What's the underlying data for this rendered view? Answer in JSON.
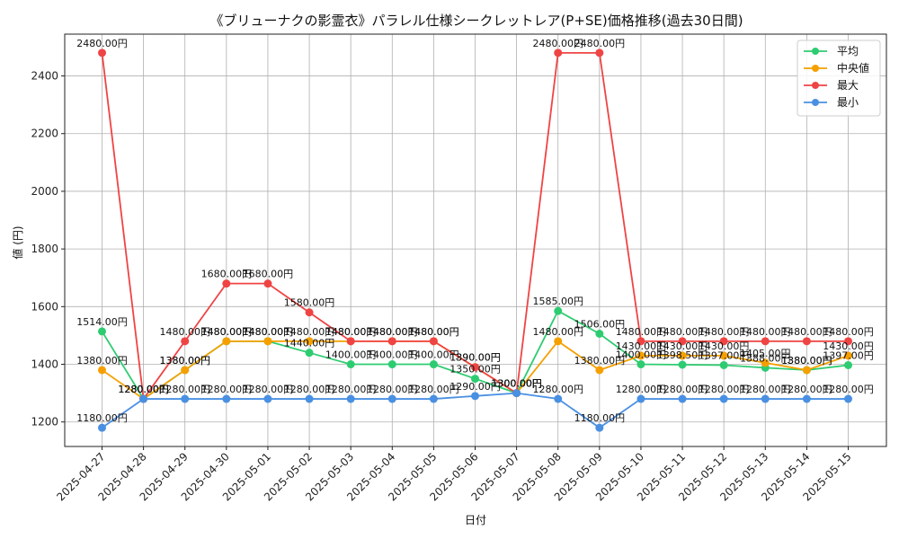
{
  "chart_data": {
    "type": "line",
    "title": "《ブリューナクの影霊衣》パラレル仕様シークレットレア(P+SE)価格推移(過去30日間)",
    "xlabel": "日付",
    "ylabel": "値 (円)",
    "ylim": [
      1115,
      2545
    ],
    "yticks": [
      1200,
      1400,
      1600,
      1800,
      2000,
      2200,
      2400
    ],
    "grid": true,
    "legend_position": "top-right",
    "categories": [
      "2025-04-27",
      "2025-04-28",
      "2025-04-29",
      "2025-04-30",
      "2025-05-01",
      "2025-05-02",
      "2025-05-03",
      "2025-05-04",
      "2025-05-05",
      "2025-05-06",
      "2025-05-07",
      "2025-05-08",
      "2025-05-09",
      "2025-05-10",
      "2025-05-11",
      "2025-05-12",
      "2025-05-13",
      "2025-05-14",
      "2025-05-15"
    ],
    "series": [
      {
        "name": "平均",
        "color": "#2ecc71",
        "values": [
          1514,
          1280,
          1380,
          1480,
          1480,
          1440,
          1400,
          1400,
          1400,
          1350,
          1300,
          1585,
          1506,
          1400,
          1398.5,
          1397,
          1388,
          1380,
          1397
        ],
        "labels": [
          "1514.00円",
          "1280.00円",
          "1380.00円",
          "1480.00円",
          "1480.00円",
          "1440.00円",
          "1400.00円",
          "1400.00円",
          "1400.00円",
          "1350.00円",
          "1300.00円",
          "1585.00円",
          "1506.00円",
          "1400.00円",
          "1398.50円",
          "1397.00円",
          "1388.00円",
          "1380.00円",
          "1397.00円"
        ]
      },
      {
        "name": "中央値",
        "color": "#f5a000",
        "values": [
          1380,
          1280,
          1380,
          1480,
          1480,
          1480,
          1480,
          1480,
          1480,
          1390,
          1300,
          1480,
          1380,
          1430,
          1430,
          1430,
          1405,
          1380,
          1430
        ],
        "labels": [
          "1380.00円",
          "1280.00円",
          "1380.00円",
          "1480.00円",
          "1480.00円",
          "1480.00円",
          "1480.00円",
          "1480.00円",
          "1480.00円",
          "1390.00円",
          "1300.00円",
          "1480.00円",
          "1380.00円",
          "1430.00円",
          "1430.00円",
          "1430.00円",
          "1405.00円",
          "1380.00円",
          "1430.00円"
        ]
      },
      {
        "name": "最大",
        "color": "#ef4444",
        "values": [
          2480,
          1280,
          1480,
          1680,
          1680,
          1580,
          1480,
          1480,
          1480,
          1390,
          1300,
          2480,
          2480,
          1480,
          1480,
          1480,
          1480,
          1480,
          1480
        ],
        "labels": [
          "2480.00円",
          "1280.00円",
          "1480.00円",
          "1680.00円",
          "1680.00円",
          "1580.00円",
          "1480.00円",
          "1480.00円",
          "1480.00円",
          "1390.00円",
          "1300.00円",
          "2480.00円",
          "2480.00円",
          "1480.00円",
          "1480.00円",
          "1480.00円",
          "1480.00円",
          "1480.00円",
          "1480.00円"
        ]
      },
      {
        "name": "最小",
        "color": "#4a90e2",
        "values": [
          1180,
          1280,
          1280,
          1280,
          1280,
          1280,
          1280,
          1280,
          1280,
          1290,
          1300,
          1280,
          1180,
          1280,
          1280,
          1280,
          1280,
          1280,
          1280
        ],
        "labels": [
          "1180.00円",
          "1280.00円",
          "1280.00円",
          "1280.00円",
          "1280.00円",
          "1280.00円",
          "1280.00円",
          "1280.00円",
          "1280.00円",
          "1290.00円",
          "1300.00円",
          "1280.00円",
          "1180.00円",
          "1280.00円",
          "1280.00円",
          "1280.00円",
          "1280.00円",
          "1280.00円",
          "1280.00円"
        ]
      }
    ]
  }
}
